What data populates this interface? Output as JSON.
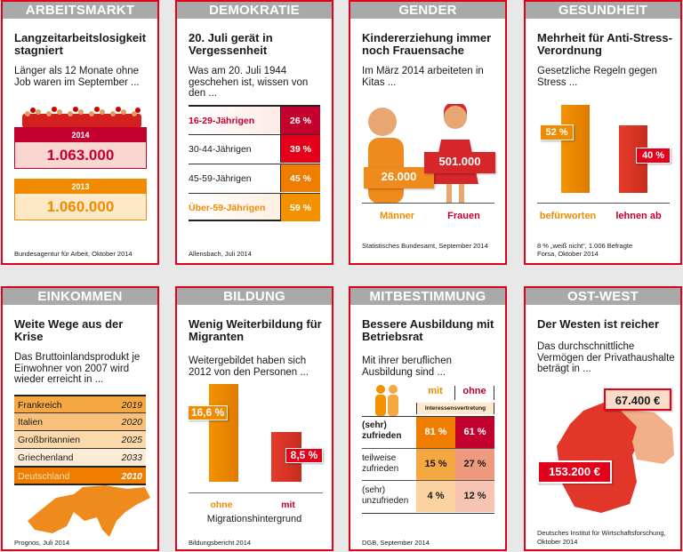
{
  "colors": {
    "frame": "#e2001a",
    "header": "#a9a9a9",
    "orange": "#f08a00",
    "red": "#e2001a",
    "darkred": "#c4002f"
  },
  "cards": [
    {
      "header": "ARBEITSMARKT",
      "title": "Langzeitarbeitslosigkeit stagniert",
      "subtitle": "Länger als 12 Monate ohne Job waren im September ...",
      "boxes": [
        {
          "year": "2014",
          "value": "1.063.000"
        },
        {
          "year": "2013",
          "value": "1.060.000"
        }
      ],
      "source": "Bundesagentur für Arbeit, Oktober 2014"
    },
    {
      "header": "DEMOKRATIE",
      "title": "20. Juli gerät in Vergessenheit",
      "subtitle": "Was am 20. Juli 1944 geschehen ist, wissen von den ...",
      "rows": [
        {
          "label": "16-29-Jährigen",
          "value": "26 %"
        },
        {
          "label": "30-44-Jährigen",
          "value": "39 %"
        },
        {
          "label": "45-59-Jährigen",
          "value": "45 %"
        },
        {
          "label": "Über-59-Jährigen",
          "value": "59 %"
        }
      ],
      "source": "Allensbach, Juli 2014"
    },
    {
      "header": "GENDER",
      "title": "Kindererziehung immer noch Frauensache",
      "subtitle": "Im März 2014 arbeiteten in Kitas ...",
      "men_value": "26.000",
      "women_value": "501.000",
      "men_label": "Männer",
      "women_label": "Frauen",
      "source": "Statistisches Bundesamt, September 2014"
    },
    {
      "header": "GESUNDHEIT",
      "title": "Mehrheit für Anti-Stress-Verordnung",
      "subtitle": "Gesetzliche Regeln gegen Stress ...",
      "bars": [
        {
          "label": "befürworten",
          "value": "52 %",
          "percent": 52
        },
        {
          "label": "lehnen ab",
          "value": "40 %",
          "percent": 40
        }
      ],
      "note": "8 % „weiß nicht“, 1.006 Befragte",
      "source": "Forsa, Oktober 2014"
    },
    {
      "header": "EINKOMMEN",
      "title": "Weite Wege aus der Krise",
      "subtitle": "Das Bruttoinlandsprodukt je Einwohner von 2007 wird wieder erreicht in ...",
      "rows": [
        {
          "country": "Frankreich",
          "year": "2019"
        },
        {
          "country": "Italien",
          "year": "2020"
        },
        {
          "country": "Großbritannien",
          "year": "2025"
        },
        {
          "country": "Griechenland",
          "year": "2033"
        },
        {
          "country": "Deutschland",
          "year": "2010"
        }
      ],
      "source": "Prognos, Juli 2014"
    },
    {
      "header": "BILDUNG",
      "title": "Wenig Weiterbildung für Migranten",
      "subtitle": "Weitergebildet haben sich 2012 von den Personen ...",
      "bars": [
        {
          "label": "ohne",
          "value": "16,6 %",
          "percent": 16.6
        },
        {
          "label": "mit",
          "value": "8,5 %",
          "percent": 8.5
        }
      ],
      "axis_label": "Migrationshintergrund",
      "source": "Bildungsbericht 2014"
    },
    {
      "header": "MITBESTIMMUNG",
      "title": "Bessere Ausbildung mit Betriebsrat",
      "subtitle": "Mit ihrer beruflichen Ausbildung sind ...",
      "col_mit": "mit",
      "col_ohne": "ohne",
      "col_group": "Interessensvertretung",
      "rows": [
        {
          "label": "(sehr) zufrieden",
          "mit": "81 %",
          "ohne": "61 %"
        },
        {
          "label": "teilweise zufrieden",
          "mit": "15 %",
          "ohne": "27 %"
        },
        {
          "label": "(sehr) unzufrieden",
          "mit": "4 %",
          "ohne": "12 %"
        }
      ],
      "source": "DGB, September 2014"
    },
    {
      "header": "OST-WEST",
      "title": "Der Westen ist reicher",
      "subtitle": "Das durchschnittliche Vermögen der Privathaushalte beträgt in ...",
      "east_value": "67.400 €",
      "west_value": "153.200 €",
      "source": "Deutsches Institut für Wirtschaftsforschung, Oktober 2014"
    }
  ]
}
